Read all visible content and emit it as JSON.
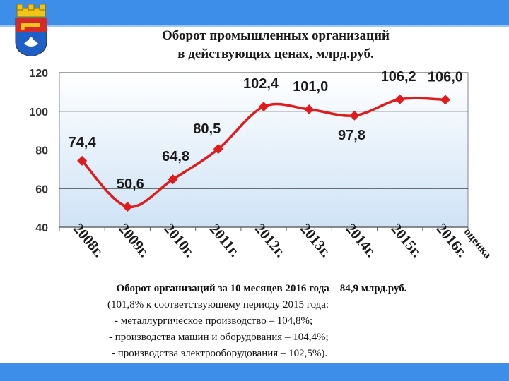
{
  "title": {
    "line1": "Оборот промышленных организаций",
    "line2": "в действующих ценах, млрд.руб."
  },
  "colors": {
    "band": "#3d8ee8",
    "line": "#e01b1b",
    "plot_bg_top": "#ffffff",
    "plot_bg_bottom": "#cfe3f6"
  },
  "chart_data": {
    "type": "line",
    "title": "Оборот промышленных организаций в действующих ценах, млрд.руб.",
    "categories": [
      "2008г.",
      "2009г.",
      "2010г.",
      "2011г.",
      "2012г.",
      "2013г.",
      "2014г.",
      "2015г.",
      "2016г."
    ],
    "extra_label": "оценка",
    "values": [
      74.4,
      50.6,
      64.8,
      80.5,
      102.4,
      101.0,
      97.8,
      106.2,
      106.0
    ],
    "value_labels": [
      "74,4",
      "50,6",
      "64,8",
      "80,5",
      "102,4",
      "101,0",
      "97,8",
      "106,2",
      "106,0"
    ],
    "y_ticks": [
      "40",
      "60",
      "80",
      "100",
      "120"
    ],
    "ylim": [
      40,
      120
    ],
    "xlabel": "",
    "ylabel": "",
    "grid": true,
    "legend": "none"
  },
  "summary": {
    "line1": "Оборот организаций за 10 месяцев 2016 года – 84,9 млрд.руб.",
    "line2": "(101,8% к соответствующему периоду 2015 года:",
    "line3": "- металлургическое производство – 104,8%;",
    "line4": "- производства машин и оборудования – 104,4%;",
    "line5": "- производства электрооборудования – 102,5%)."
  }
}
